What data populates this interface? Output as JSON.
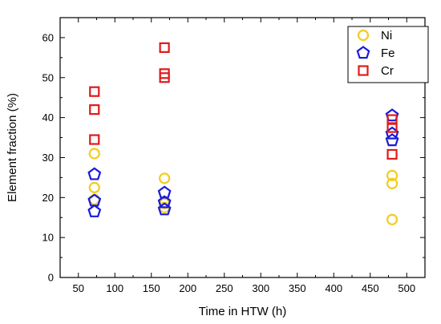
{
  "chart_data": {
    "type": "scatter",
    "xlabel": "Time in HTW (h)",
    "ylabel": "Element fraction (%)",
    "xlim": [
      25,
      525
    ],
    "ylim": [
      0,
      65
    ],
    "x_ticks": [
      50,
      100,
      150,
      200,
      250,
      300,
      350,
      400,
      450,
      500
    ],
    "y_ticks": [
      0,
      10,
      20,
      30,
      40,
      50,
      60
    ],
    "x_tick_labels": [
      "50",
      "100",
      "150",
      "200",
      "250",
      "300",
      "350",
      "400",
      "450",
      "500"
    ],
    "y_tick_labels": [
      "0",
      "10",
      "20",
      "30",
      "40",
      "50",
      "60"
    ],
    "grid": false,
    "legend_position": "top-right",
    "series": [
      {
        "name": "Ni",
        "marker": "circle",
        "color": "#f2cc1b",
        "points": [
          {
            "x": 72,
            "y": 31.0
          },
          {
            "x": 72,
            "y": 22.5
          },
          {
            "x": 72,
            "y": 19.5
          },
          {
            "x": 168,
            "y": 24.8
          },
          {
            "x": 168,
            "y": 18.5
          },
          {
            "x": 168,
            "y": 17.5
          },
          {
            "x": 480,
            "y": 25.5
          },
          {
            "x": 480,
            "y": 23.5
          },
          {
            "x": 480,
            "y": 14.5
          }
        ]
      },
      {
        "name": "Fe",
        "marker": "pentagon",
        "color": "#1a1adb",
        "points": [
          {
            "x": 72,
            "y": 25.8
          },
          {
            "x": 72,
            "y": 19.2
          },
          {
            "x": 72,
            "y": 16.5
          },
          {
            "x": 168,
            "y": 21.2
          },
          {
            "x": 168,
            "y": 18.8
          },
          {
            "x": 168,
            "y": 17.0
          },
          {
            "x": 480,
            "y": 40.5
          },
          {
            "x": 480,
            "y": 36.0
          },
          {
            "x": 480,
            "y": 34.3
          }
        ]
      },
      {
        "name": "Cr",
        "marker": "square",
        "color": "#e01a1a",
        "points": [
          {
            "x": 72,
            "y": 46.5
          },
          {
            "x": 72,
            "y": 42.0
          },
          {
            "x": 72,
            "y": 34.5
          },
          {
            "x": 168,
            "y": 57.5
          },
          {
            "x": 168,
            "y": 51.0
          },
          {
            "x": 168,
            "y": 50.0
          },
          {
            "x": 480,
            "y": 39.5
          },
          {
            "x": 480,
            "y": 37.5
          },
          {
            "x": 480,
            "y": 30.8
          }
        ]
      }
    ]
  }
}
